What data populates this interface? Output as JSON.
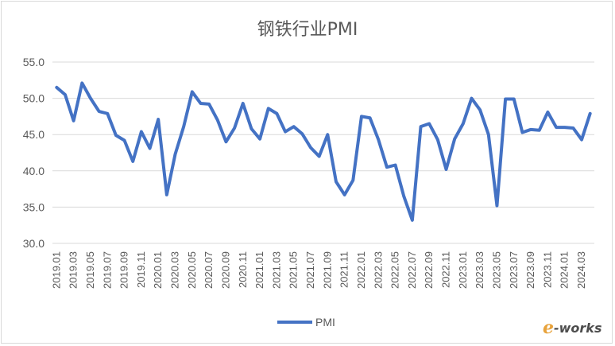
{
  "chart_data": {
    "type": "line",
    "title": "钢铁行业PMI",
    "xlabel": "",
    "ylabel": "",
    "ylim": [
      30.0,
      55.0
    ],
    "yticks": [
      "30.0",
      "35.0",
      "40.0",
      "45.0",
      "50.0",
      "55.0"
    ],
    "grid": true,
    "legend_position": "bottom",
    "x": [
      "2019.01",
      "2019.02",
      "2019.03",
      "2019.04",
      "2019.05",
      "2019.06",
      "2019.07",
      "2019.08",
      "2019.09",
      "2019.10",
      "2019.11",
      "2019.12",
      "2020.01",
      "2020.02",
      "2020.03",
      "2020.04",
      "2020.05",
      "2020.06",
      "2020.07",
      "2020.08",
      "2020.09",
      "2020.10",
      "2020.11",
      "2020.12",
      "2021.01",
      "2021.02",
      "2021.03",
      "2021.04",
      "2021.05",
      "2021.06",
      "2021.07",
      "2021.08",
      "2021.09",
      "2021.10",
      "2021.11",
      "2021.12",
      "2022.01",
      "2022.02",
      "2022.03",
      "2022.04",
      "2022.05",
      "2022.06",
      "2022.07",
      "2022.08",
      "2022.09",
      "2022.10",
      "2022.11",
      "2022.12",
      "2023.01",
      "2023.02",
      "2023.03",
      "2023.04",
      "2023.05",
      "2023.06",
      "2023.07",
      "2023.08",
      "2023.09",
      "2023.10",
      "2023.11",
      "2023.12",
      "2024.01",
      "2024.02",
      "2024.03",
      "2024.04"
    ],
    "x_tick_labels": [
      "2019.01",
      "2019.03",
      "2019.05",
      "2019.07",
      "2019.09",
      "2019.11",
      "2020.01",
      "2020.03",
      "2020.05",
      "2020.07",
      "2020.09",
      "2020.11",
      "2021.01",
      "2021.03",
      "2021.05",
      "2021.07",
      "2021.09",
      "2021.11",
      "2022.01",
      "2022.03",
      "2022.05",
      "2022.07",
      "2022.09",
      "2022.11",
      "2023.01",
      "2023.03",
      "2023.05",
      "2023.07",
      "2023.09",
      "2023.11",
      "2024.01",
      "2024.03"
    ],
    "series": [
      {
        "name": "PMI",
        "color": "#4472c4",
        "values": [
          51.5,
          50.5,
          46.9,
          52.1,
          50.0,
          48.2,
          47.9,
          44.9,
          44.2,
          41.3,
          45.4,
          43.1,
          47.1,
          36.7,
          42.3,
          46.1,
          50.9,
          49.3,
          49.2,
          47.0,
          44.0,
          45.9,
          49.3,
          45.8,
          44.4,
          48.6,
          47.9,
          45.4,
          46.1,
          45.1,
          43.2,
          42.0,
          45.0,
          38.5,
          36.7,
          38.7,
          47.5,
          47.3,
          44.3,
          40.5,
          40.8,
          36.5,
          33.2,
          46.1,
          46.5,
          44.3,
          40.2,
          44.4,
          46.5,
          50.0,
          48.4,
          45.0,
          35.2,
          49.9,
          49.9,
          45.3,
          45.7,
          45.6,
          48.1,
          46.0,
          46.0,
          45.9,
          44.3,
          47.9
        ]
      }
    ]
  },
  "legend": {
    "label": "PMI",
    "color": "#4472c4"
  },
  "watermark": {
    "text_e": "e",
    "text_rest": "-works"
  }
}
